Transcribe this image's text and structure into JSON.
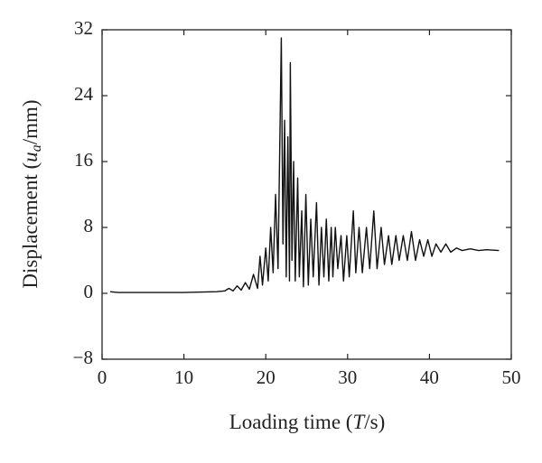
{
  "chart_data": {
    "type": "line",
    "xlabel": {
      "text": "Loading time (",
      "var": "T",
      "suffix": "/s)"
    },
    "ylabel": {
      "text": "Displacement (",
      "var": "u",
      "sub": "a",
      "suffix": "/mm)"
    },
    "xlim": [
      0,
      50
    ],
    "xticks": [
      0,
      10,
      20,
      30,
      40,
      50
    ],
    "ylim": [
      -8,
      32
    ],
    "yticks": [
      {
        "value": -8,
        "label": "−8"
      },
      0,
      8,
      16,
      24,
      32
    ],
    "series": [
      {
        "color": "#111111",
        "x": [
          1,
          2,
          5,
          10,
          14,
          15,
          15.5,
          16,
          16.5,
          17,
          17.5,
          18,
          18.5,
          19,
          19.3,
          19.6,
          20,
          20.3,
          20.6,
          20.9,
          21.2,
          21.5,
          21.9,
          22.1,
          22.3,
          22.5,
          22.7,
          22.9,
          23.0,
          23.2,
          23.4,
          23.6,
          23.9,
          24.1,
          24.4,
          24.6,
          24.9,
          25.2,
          25.5,
          25.8,
          26.2,
          26.5,
          26.8,
          27.1,
          27.4,
          27.7,
          28.0,
          28.2,
          28.5,
          28.8,
          29.2,
          29.5,
          29.9,
          30.2,
          30.7,
          31.0,
          31.4,
          31.8,
          32.3,
          32.7,
          33.2,
          33.6,
          34.1,
          34.5,
          35.0,
          35.4,
          35.9,
          36.3,
          36.8,
          37.3,
          37.8,
          38.3,
          38.8,
          39.3,
          39.8,
          40.3,
          40.8,
          41.4,
          42,
          42.6,
          43.3,
          44,
          45,
          46,
          47,
          48.5
        ],
        "values": [
          0.2,
          0.1,
          0.1,
          0.1,
          0.2,
          0.3,
          0.6,
          0.3,
          0.9,
          0.4,
          1.3,
          0.5,
          2.3,
          0.6,
          4.5,
          1.0,
          5.5,
          1.5,
          8,
          2.5,
          12,
          3,
          31,
          6,
          21,
          2,
          19,
          1.5,
          28,
          4,
          16,
          1.5,
          14,
          2,
          10,
          0.8,
          12,
          1.0,
          9,
          2,
          11,
          1.0,
          8,
          2,
          9,
          1.5,
          8,
          2,
          8,
          3,
          7,
          1.5,
          7,
          2,
          10,
          2.5,
          8,
          2.5,
          8,
          3,
          10,
          3,
          8,
          3.5,
          7,
          3.5,
          7,
          4,
          7,
          4,
          7.5,
          4,
          6.5,
          4.5,
          6.5,
          4.5,
          6,
          5,
          6,
          5,
          5.5,
          5.2,
          5.4,
          5.2,
          5.3,
          5.2
        ]
      }
    ]
  }
}
